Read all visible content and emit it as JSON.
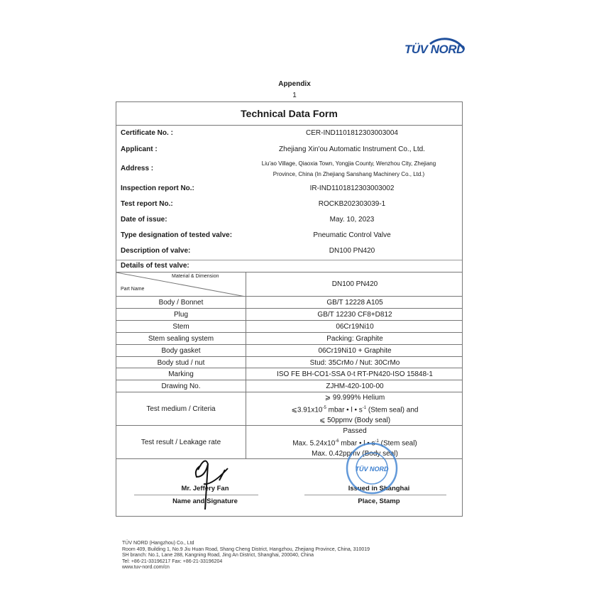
{
  "logo": {
    "text": "TÜV NORD",
    "color": "#1f4f9c"
  },
  "header": {
    "appendix": "Appendix",
    "page_number": "1"
  },
  "form": {
    "title": "Technical Data Form",
    "fields": [
      {
        "label": "Certificate No. :",
        "value": "CER-IND1101812303003004"
      },
      {
        "label": "Applicant :",
        "value": "Zhejiang Xin'ou Automatic Instrument Co., Ltd."
      },
      {
        "label": "Address :",
        "value": "Liu'ao Village, Qiaoxia Town, Yongjia County, Wenzhou City, Zhejiang",
        "value2": "Province, China (In Zhejiang Sanshang Machinery Co., Ltd.)"
      },
      {
        "label": "Inspection report No.:",
        "value": "IR-IND1101812303003002"
      },
      {
        "label": "Test report No.:",
        "value": "ROCKB202303039-1"
      },
      {
        "label": "Date of issue:",
        "value": "May. 10, 2023"
      },
      {
        "label": "Type designation of tested valve:",
        "value": "Pneumatic Control Valve"
      },
      {
        "label": "Description of valve:",
        "value": "DN100 PN420"
      }
    ],
    "details_label": "Details of test valve:",
    "table": {
      "header_top": "Material & Dimension",
      "header_left": "Part Name",
      "header_value": "DN100 PN420",
      "rows": [
        {
          "part": "Body / Bonnet",
          "material": "GB/T 12228 A105"
        },
        {
          "part": "Plug",
          "material": "GB/T 12230 CF8+D812"
        },
        {
          "part": "Stem",
          "material": "06Cr19Ni10"
        },
        {
          "part": "Stem sealing system",
          "material": "Packing: Graphite"
        },
        {
          "part": "Body gasket",
          "material": "06Cr19Ni10 + Graphite"
        },
        {
          "part": "Body stud / nut",
          "material": "Stud: 35CrMo / Nut: 30CrMo"
        },
        {
          "part": "Marking",
          "material": "ISO FE BH-CO1-SSA 0-t RT-PN420-ISO 15848-1"
        },
        {
          "part": "Drawing No.",
          "material": "ZJHM-420-100-00"
        }
      ],
      "test_medium": {
        "label": "Test medium / Criteria",
        "line1": "⩾ 99.999% Helium",
        "line2a": "⩽3.91x10",
        "line2exp": "-5",
        "line2b": " mbar • l • s",
        "line2exp2": "-1",
        "line2c": " (Stem seal) and",
        "line3": "⩽ 50ppmv (Body seal)"
      },
      "test_result": {
        "label": "Test result / Leakage rate",
        "line1": "Passed",
        "line2a": "Max. 5.24x10",
        "line2exp": "-6",
        "line2b": " mbar • l • s",
        "line2exp2": "-1",
        "line2c": " (Stem seal)",
        "line3": "Max. 0.42ppmv (Body seal)"
      }
    },
    "signature": {
      "name": "Mr. Jeffery Fan",
      "name_caption": "Name and Signature",
      "place": "Issued in Shanghai",
      "place_caption": "Place, Stamp",
      "stamp_text": "TÜV NORD (HANGZHOU) CO., LTD.",
      "stamp_color": "#3b7fd0"
    }
  },
  "footer": {
    "lines": [
      "TÜV NORD (Hangzhou) Co., Ltd",
      "Room 409, Building 1, No.9 Jiu Huan Road, Shang Cheng District, Hangzhou, Zhejiang Province, China, 310019",
      "SH branch: No.1, Lane 288, Kangning Road, Jing An District, Shanghai, 200040, China",
      "Tel: +86-21-33196217    Fax: +86-21-33196204",
      "www.tuv-nord.com/cn"
    ]
  }
}
